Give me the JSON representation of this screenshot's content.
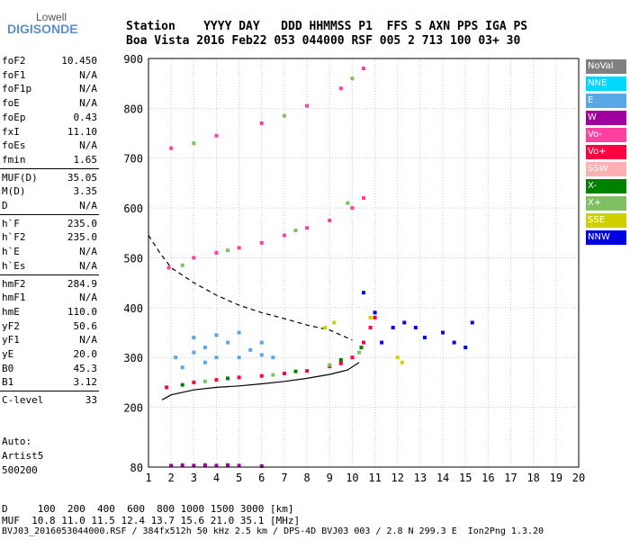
{
  "logo": {
    "line1": "Lowell",
    "line2": "DIGISONDE"
  },
  "header": {
    "row1": "Station    YYYY DAY   DDD HHMMSS P1  FFS S AXN PPS IGA PS",
    "row2": "Boa Vista 2016 Feb22 053 044000 RSF 005 2 713 100 03+ 30"
  },
  "params": [
    {
      "k": "foF2",
      "v": "10.450"
    },
    {
      "k": "foF1",
      "v": "N/A"
    },
    {
      "k": "foF1p",
      "v": "N/A"
    },
    {
      "k": "foE",
      "v": "N/A"
    },
    {
      "k": "foEp",
      "v": "0.43"
    },
    {
      "k": "fxI",
      "v": "11.10"
    },
    {
      "k": "foEs",
      "v": "N/A"
    },
    {
      "k": "fmin",
      "v": "1.65"
    },
    {
      "k": "MUF(D)",
      "v": "35.05"
    },
    {
      "k": "M(D)",
      "v": "3.35"
    },
    {
      "k": "D",
      "v": "N/A"
    },
    {
      "k": "h`F",
      "v": "235.0"
    },
    {
      "k": "h`F2",
      "v": "235.0"
    },
    {
      "k": "h`E",
      "v": "N/A"
    },
    {
      "k": "h`Es",
      "v": "N/A"
    },
    {
      "k": "hmF2",
      "v": "284.9"
    },
    {
      "k": "hmF1",
      "v": "N/A"
    },
    {
      "k": "hmE",
      "v": "110.0"
    },
    {
      "k": "yF2",
      "v": "50.6"
    },
    {
      "k": "yF1",
      "v": "N/A"
    },
    {
      "k": "yE",
      "v": "20.0"
    },
    {
      "k": "B0",
      "v": "45.3"
    },
    {
      "k": "B1",
      "v": "3.12"
    },
    {
      "k": "C-level",
      "v": "33"
    }
  ],
  "auto": {
    "line1": "Auto:",
    "line2": "Artist5",
    "line3": "500200"
  },
  "legend": [
    {
      "label": "NoVal",
      "color": "#808080"
    },
    {
      "label": "NNE",
      "color": "#00d8ff"
    },
    {
      "label": "E",
      "color": "#58a8e8"
    },
    {
      "label": "W",
      "color": "#a000a0"
    },
    {
      "label": "Vo-",
      "color": "#ff40a0"
    },
    {
      "label": "Vo+",
      "color": "#ff0040"
    },
    {
      "label": "SSW",
      "color": "#ffb0b0"
    },
    {
      "label": "X-",
      "color": "#008000"
    },
    {
      "label": "X+",
      "color": "#80c060"
    },
    {
      "label": "SSE",
      "color": "#d0d000"
    },
    {
      "label": "NNW",
      "color": "#0000e0"
    }
  ],
  "footer": {
    "d_row": "D     100  200  400  600  800 1000 1500 3000 [km]",
    "muf_row": "MUF  10.8 11.0 11.5 12.4 13.7 15.6 21.0 35.1 [MHz]",
    "file_row": "BVJ03_2016053044000.RSF / 384fx512h 50 kHz 2.5 km / DPS-4D BVJ03 003 / 2.8 N 299.3 E  Ion2Png 1.3.20"
  },
  "chart_data": {
    "type": "scatter",
    "xlim": [
      1,
      20
    ],
    "ylim": [
      80,
      900
    ],
    "x_ticks": [
      1,
      2,
      3,
      4,
      5,
      6,
      7,
      8,
      9,
      10,
      11,
      12,
      13,
      14,
      15,
      16,
      17,
      18,
      19,
      20
    ],
    "y_ticks": [
      80,
      200,
      300,
      400,
      500,
      600,
      700,
      800,
      900
    ],
    "grid": true,
    "legend_position": "right",
    "series": [
      {
        "name": "E",
        "color": "#58a8e8",
        "points": [
          [
            2.2,
            300
          ],
          [
            3,
            310
          ],
          [
            3.5,
            320
          ],
          [
            4,
            300
          ],
          [
            4.5,
            330
          ],
          [
            5,
            300
          ],
          [
            5.5,
            315
          ],
          [
            6,
            305
          ],
          [
            6.5,
            300
          ],
          [
            3,
            340
          ],
          [
            4,
            345
          ],
          [
            5,
            350
          ],
          [
            6,
            330
          ],
          [
            2.5,
            280
          ],
          [
            3.5,
            290
          ]
        ]
      },
      {
        "name": "Vo+",
        "color": "#ff0040",
        "points": [
          [
            1.8,
            240
          ],
          [
            3,
            250
          ],
          [
            4,
            255
          ],
          [
            5,
            260
          ],
          [
            6,
            263
          ],
          [
            7,
            268
          ],
          [
            8,
            273
          ],
          [
            9,
            282
          ],
          [
            9.5,
            288
          ],
          [
            10,
            300
          ],
          [
            10.5,
            330
          ],
          [
            10.8,
            360
          ],
          [
            11,
            380
          ]
        ]
      },
      {
        "name": "Vo-",
        "color": "#ff40a0",
        "points": [
          [
            1.9,
            480
          ],
          [
            3,
            500
          ],
          [
            4,
            510
          ],
          [
            5,
            520
          ],
          [
            6,
            530
          ],
          [
            7,
            545
          ],
          [
            8,
            560
          ],
          [
            9,
            575
          ],
          [
            10,
            600
          ],
          [
            10.5,
            620
          ],
          [
            2,
            720
          ],
          [
            4,
            745
          ],
          [
            6,
            770
          ],
          [
            8,
            805
          ],
          [
            9.5,
            840
          ],
          [
            10.5,
            880
          ]
        ]
      },
      {
        "name": "X+",
        "color": "#80c060",
        "points": [
          [
            2.5,
            485
          ],
          [
            4.5,
            515
          ],
          [
            7.5,
            555
          ],
          [
            9.8,
            610
          ],
          [
            3,
            730
          ],
          [
            7,
            785
          ],
          [
            10,
            860
          ],
          [
            3.5,
            252
          ],
          [
            6.5,
            265
          ],
          [
            9,
            285
          ],
          [
            10.3,
            310
          ]
        ]
      },
      {
        "name": "X-",
        "color": "#008000",
        "points": [
          [
            2.5,
            245
          ],
          [
            4.5,
            258
          ],
          [
            7.5,
            272
          ],
          [
            9.5,
            295
          ],
          [
            10.4,
            320
          ]
        ]
      },
      {
        "name": "NNW",
        "color": "#0000e0",
        "points": [
          [
            11.3,
            330
          ],
          [
            11.8,
            360
          ],
          [
            12.3,
            370
          ],
          [
            12.8,
            360
          ],
          [
            13.2,
            340
          ],
          [
            14,
            350
          ],
          [
            14.5,
            330
          ],
          [
            15,
            320
          ],
          [
            15.3,
            370
          ],
          [
            10.5,
            430
          ],
          [
            11,
            390
          ]
        ]
      },
      {
        "name": "SSE",
        "color": "#d0d000",
        "points": [
          [
            8.8,
            360
          ],
          [
            9.2,
            370
          ],
          [
            12.2,
            290
          ],
          [
            12,
            300
          ],
          [
            10.8,
            380
          ]
        ]
      },
      {
        "name": "W",
        "color": "#a000a0",
        "points": [
          [
            2,
            83
          ],
          [
            2.5,
            84
          ],
          [
            3,
            83
          ],
          [
            3.5,
            84
          ],
          [
            4,
            83
          ],
          [
            4.5,
            84
          ],
          [
            5,
            83
          ],
          [
            6,
            82
          ]
        ]
      }
    ],
    "model_curve": [
      [
        1.6,
        215
      ],
      [
        2,
        225
      ],
      [
        3,
        235
      ],
      [
        4,
        240
      ],
      [
        5,
        243
      ],
      [
        6,
        247
      ],
      [
        7,
        252
      ],
      [
        8,
        258
      ],
      [
        9,
        266
      ],
      [
        9.8,
        275
      ],
      [
        10.3,
        290
      ]
    ],
    "muf_curve": [
      [
        1,
        545
      ],
      [
        1.5,
        510
      ],
      [
        2,
        480
      ],
      [
        3,
        450
      ],
      [
        4,
        425
      ],
      [
        5,
        405
      ],
      [
        6,
        390
      ],
      [
        7,
        378
      ],
      [
        8,
        365
      ],
      [
        9,
        355
      ],
      [
        9.5,
        345
      ],
      [
        10,
        335
      ]
    ]
  }
}
